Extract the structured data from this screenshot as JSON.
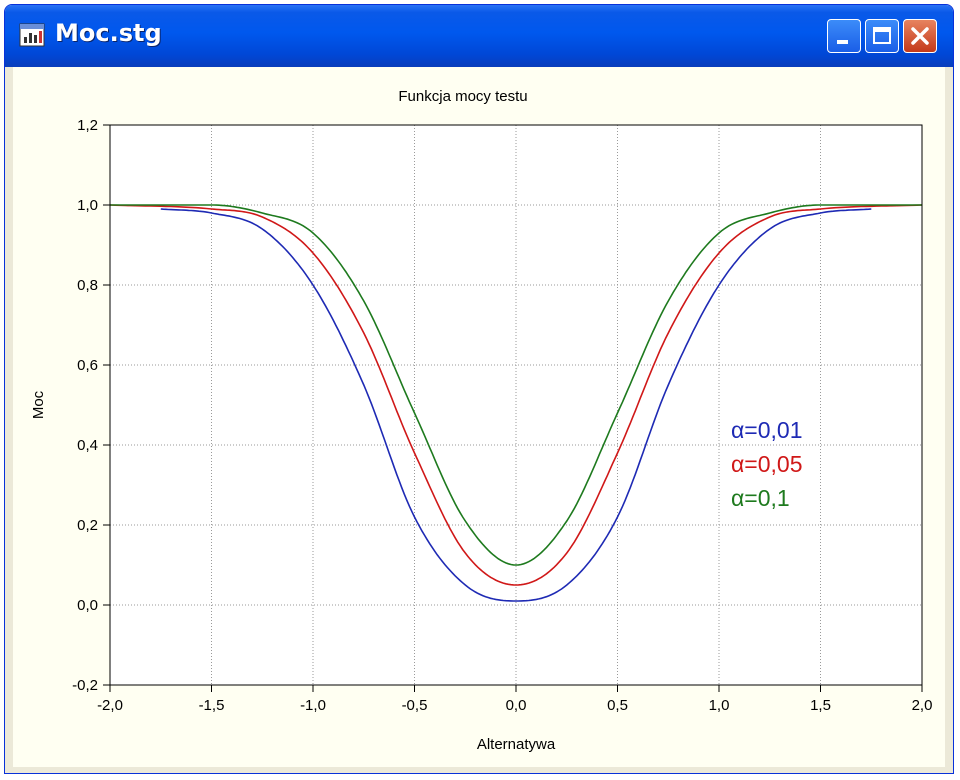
{
  "window": {
    "title": "Moc.stg",
    "buttons": [
      "minimize",
      "maximize",
      "close"
    ],
    "icon": "chart-window-icon"
  },
  "colors": {
    "titlebar": "#0058EE",
    "plot_background": "#FFFFFF",
    "client_background": "#FFFFF2",
    "series_blue": "#1E2AB4",
    "series_red": "#D01818",
    "series_green": "#1E7A1E"
  },
  "chart_data": {
    "type": "line",
    "title": "Funkcja mocy testu",
    "xlabel": "Alternatywa",
    "ylabel": "Moc",
    "xlim": [
      -2.0,
      2.0
    ],
    "ylim": [
      -0.2,
      1.2
    ],
    "xticks": [
      "-2,0",
      "-1,5",
      "-1,0",
      "-0,5",
      "0,0",
      "0,5",
      "1,0",
      "1,5",
      "2,0"
    ],
    "yticks": [
      "-0,2",
      "0,0",
      "0,2",
      "0,4",
      "0,6",
      "0,8",
      "1,0",
      "1,2"
    ],
    "grid": true,
    "legend_position": "right",
    "series": [
      {
        "name": "α=0,01",
        "color": "#1E2AB4",
        "x": [
          -1.75,
          -1.5,
          -1.25,
          -1.0,
          -0.75,
          -0.5,
          -0.25,
          0.0,
          0.25,
          0.5,
          0.75,
          1.0,
          1.25,
          1.5,
          1.75
        ],
        "y": [
          0.99,
          0.98,
          0.94,
          0.8,
          0.55,
          0.22,
          0.05,
          0.01,
          0.05,
          0.22,
          0.55,
          0.8,
          0.94,
          0.98,
          0.99
        ]
      },
      {
        "name": "α=0,05",
        "color": "#D01818",
        "x": [
          -2.0,
          -1.5,
          -1.25,
          -1.0,
          -0.75,
          -0.5,
          -0.25,
          0.0,
          0.25,
          0.5,
          0.75,
          1.0,
          1.25,
          1.5,
          2.0
        ],
        "y": [
          1.0,
          0.99,
          0.97,
          0.88,
          0.68,
          0.38,
          0.13,
          0.05,
          0.13,
          0.38,
          0.68,
          0.88,
          0.97,
          0.99,
          1.0
        ]
      },
      {
        "name": "α=0,1",
        "color": "#1E7A1E",
        "x": [
          -2.0,
          -1.5,
          -1.25,
          -1.0,
          -0.75,
          -0.5,
          -0.25,
          0.0,
          0.25,
          0.5,
          0.75,
          1.0,
          1.25,
          1.5,
          2.0
        ],
        "y": [
          1.0,
          1.0,
          0.98,
          0.93,
          0.76,
          0.48,
          0.21,
          0.1,
          0.21,
          0.48,
          0.76,
          0.93,
          0.98,
          1.0,
          1.0
        ]
      }
    ]
  }
}
